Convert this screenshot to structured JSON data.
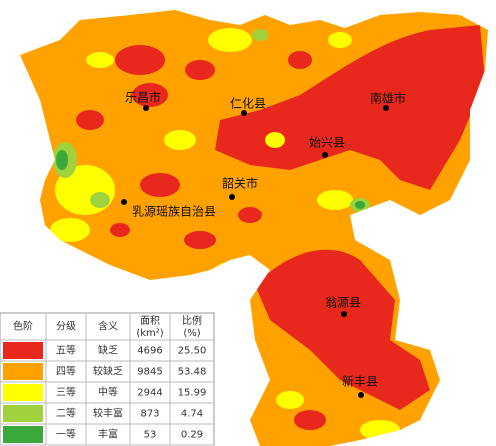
{
  "map": {
    "labels": [
      "乐昌市",
      "仁化县",
      "南雄市",
      "始兴县",
      "韶关市",
      "乳源瑶族自治县",
      "翁源县",
      "新丰县"
    ]
  },
  "legend": {
    "headers": [
      "色阶",
      "分级",
      "含义",
      [
        "面积",
        "(km²)"
      ],
      [
        "比例",
        "(%)"
      ]
    ],
    "rows": [
      {
        "color": "#e8281c",
        "grade": "五等",
        "meaning": "缺乏",
        "area": 4696,
        "percent": "25.50"
      },
      {
        "color": "#ffa200",
        "grade": "四等",
        "meaning": "较缺乏",
        "area": 9845,
        "percent": "53.48"
      },
      {
        "color": "#ffff00",
        "grade": "三等",
        "meaning": "中等",
        "area": 2944,
        "percent": "15.99"
      },
      {
        "color": "#9fd23c",
        "grade": "二等",
        "meaning": "较丰富",
        "area": 873,
        "percent": "4.74"
      },
      {
        "color": "#3aa83a",
        "grade": "一等",
        "meaning": "丰富",
        "area": 53,
        "percent": "0.29"
      }
    ]
  }
}
